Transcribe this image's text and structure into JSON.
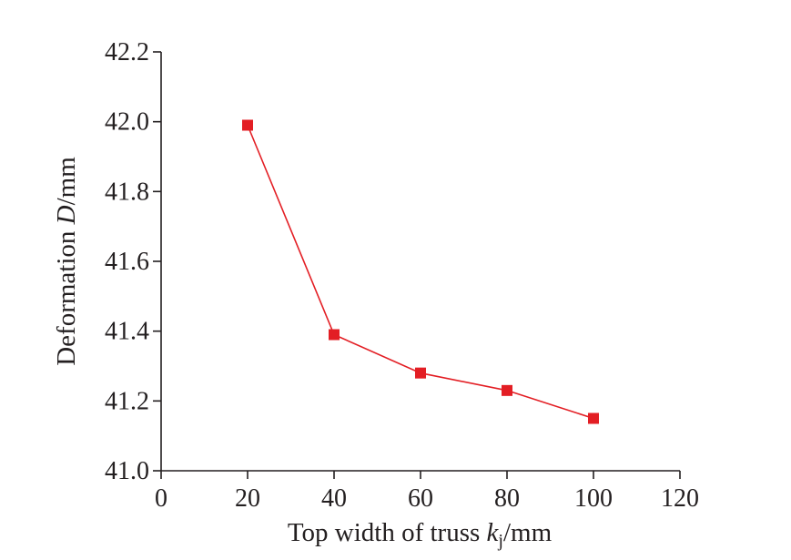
{
  "chart_data": {
    "type": "line",
    "x": [
      20,
      40,
      60,
      80,
      100
    ],
    "series": [
      {
        "values": [
          41.99,
          41.39,
          41.28,
          41.23,
          41.15
        ],
        "color": "#e31e24",
        "marker": "square"
      }
    ],
    "xlim": [
      0,
      120
    ],
    "ylim": [
      41.0,
      42.2
    ],
    "xticks": [
      "0",
      "20",
      "40",
      "60",
      "80",
      "100",
      "120"
    ],
    "yticks": [
      "41.0",
      "41.2",
      "41.4",
      "41.6",
      "41.8",
      "42.0",
      "42.2"
    ],
    "xlabel": {
      "prefix": "Top width of truss ",
      "var": "k",
      "sub": "j",
      "suffix": "/mm"
    },
    "ylabel": {
      "prefix": "Deformation ",
      "var": "D",
      "suffix": "/mm"
    },
    "grid": false,
    "legend": "none"
  }
}
